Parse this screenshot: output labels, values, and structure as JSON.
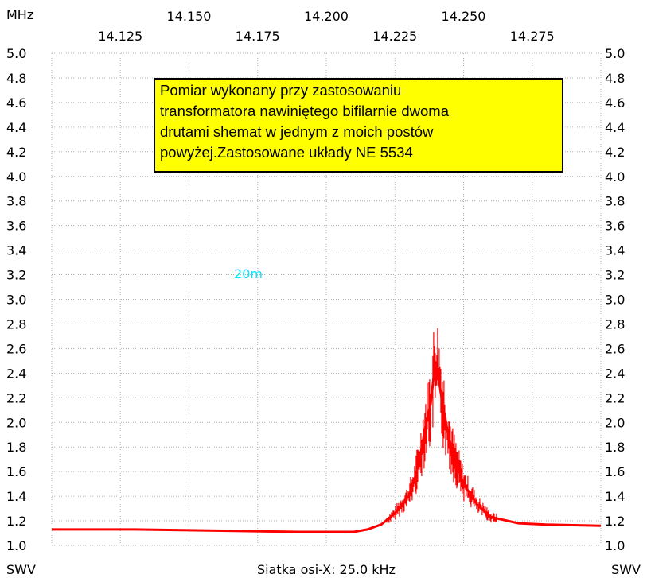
{
  "chart_data": {
    "type": "line",
    "top_left_unit": "MHz",
    "bottom_left_label": "SWV",
    "bottom_right_label": "SWV",
    "bottom_caption": "Siatka osi-X: 25.0 kHz",
    "band_label": "20m",
    "xlim": [
      14.1,
      14.3
    ],
    "ylim": [
      1.0,
      5.0
    ],
    "x_ticks_upper": [
      "14.150",
      "14.200",
      "14.250"
    ],
    "x_ticks_lower": [
      "14.125",
      "14.175",
      "14.225",
      "14.275"
    ],
    "y_ticks": [
      "1.0",
      "1.2",
      "1.4",
      "1.6",
      "1.8",
      "2.0",
      "2.2",
      "2.4",
      "2.6",
      "2.8",
      "3.0",
      "3.2",
      "3.4",
      "3.6",
      "3.8",
      "4.0",
      "4.2",
      "4.4",
      "4.6",
      "4.8",
      "5.0"
    ],
    "grid": true,
    "series": [
      {
        "color": "#ff0000",
        "points": [
          [
            14.1,
            1.13
          ],
          [
            14.13,
            1.13
          ],
          [
            14.16,
            1.12
          ],
          [
            14.19,
            1.11
          ],
          [
            14.2,
            1.11
          ],
          [
            14.21,
            1.11
          ],
          [
            14.215,
            1.13
          ],
          [
            14.22,
            1.17
          ],
          [
            14.225,
            1.26
          ],
          [
            14.23,
            1.4
          ],
          [
            14.232,
            1.52
          ],
          [
            14.234,
            1.7
          ],
          [
            14.236,
            1.95
          ],
          [
            14.238,
            2.15
          ],
          [
            14.239,
            2.35
          ],
          [
            14.24,
            2.47
          ],
          [
            14.241,
            2.35
          ],
          [
            14.242,
            2.2
          ],
          [
            14.244,
            1.95
          ],
          [
            14.246,
            1.75
          ],
          [
            14.25,
            1.5
          ],
          [
            14.255,
            1.33
          ],
          [
            14.26,
            1.23
          ],
          [
            14.27,
            1.18
          ],
          [
            14.28,
            1.17
          ],
          [
            14.3,
            1.16
          ]
        ]
      }
    ]
  },
  "annotation": {
    "lines": [
      "Pomiar wykonany przy zastosowaniu",
      "transformatora nawiniętego bifilarnie  dwoma",
      "drutami shemat w jednym z moich postów",
      "powyżej.Zastosowane układy NE 5534"
    ],
    "background": "#ffff00"
  }
}
